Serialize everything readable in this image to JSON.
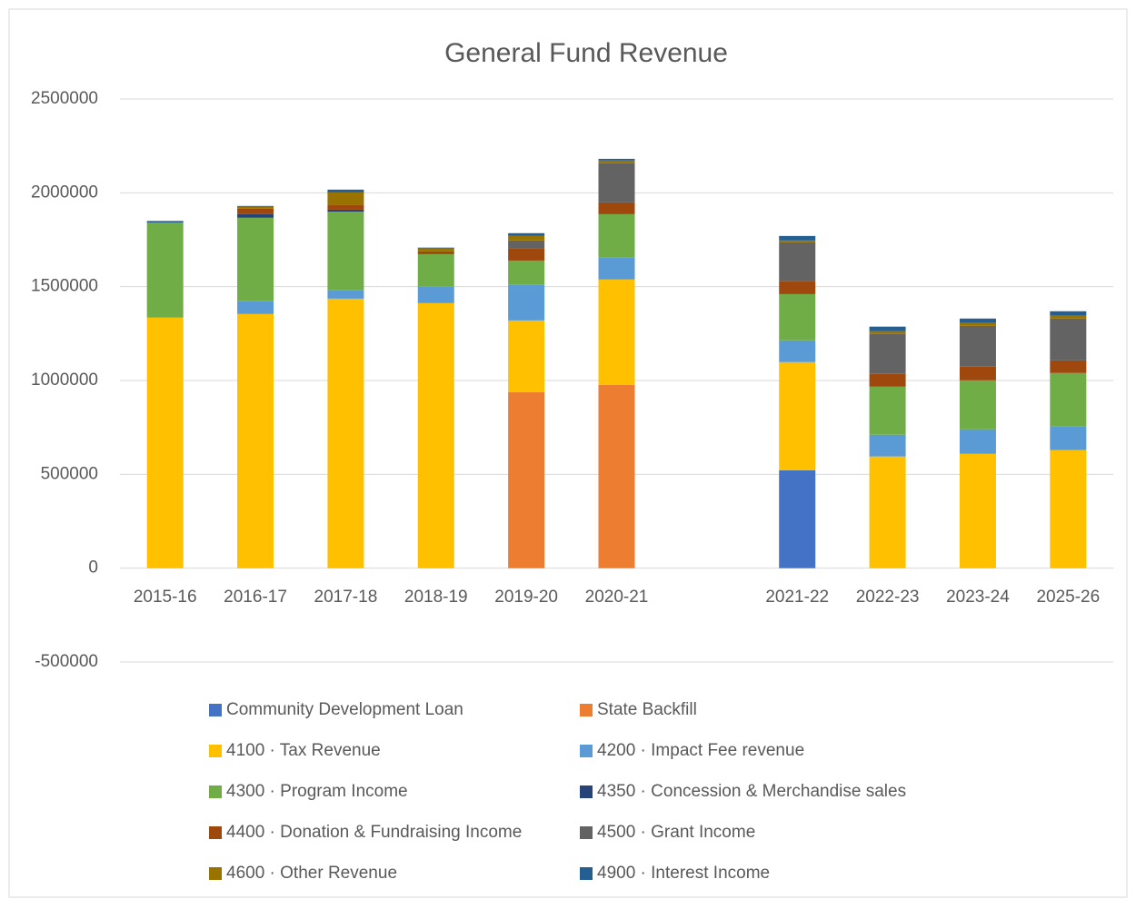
{
  "chart_data": {
    "type": "stacked_bar",
    "title": "General Fund Revenue",
    "categories": [
      "2015-16",
      "2016-17",
      "2017-18",
      "2018-19",
      "2019-20",
      "2020-21",
      null,
      "2021-22",
      "2022-23",
      "2023-24",
      "2025-26"
    ],
    "ylim": [
      -500000,
      2500000
    ],
    "yticks": [
      -500000,
      0,
      500000,
      1000000,
      1500000,
      2000000,
      2500000
    ],
    "grid": true,
    "legend": "bottom",
    "series": [
      {
        "name": "Community Development Loan",
        "color": "#4472c4",
        "values": [
          0,
          0,
          0,
          0,
          0,
          0,
          null,
          522000,
          0,
          0,
          0
        ]
      },
      {
        "name": "State Backfill",
        "color": "#ed7d31",
        "values": [
          0,
          0,
          0,
          0,
          938000,
          977000,
          null,
          0,
          0,
          0,
          0
        ]
      },
      {
        "name": "4100 · Tax Revenue",
        "color": "#ffc000",
        "values": [
          1335000,
          1354000,
          1436000,
          1412000,
          382000,
          561000,
          null,
          576000,
          595000,
          609000,
          629000
        ]
      },
      {
        "name": "4200 · Impact Fee revenue",
        "color": "#5b9bd5",
        "values": [
          0,
          68000,
          44000,
          87000,
          189000,
          116000,
          null,
          116000,
          116000,
          131000,
          125000
        ]
      },
      {
        "name": "4300 · Program Income",
        "color": "#70ad47",
        "values": [
          507000,
          445000,
          420000,
          174000,
          130000,
          232000,
          null,
          246000,
          256000,
          261000,
          286000
        ]
      },
      {
        "name": "4350 · Concession & Merchandise sales",
        "color": "#264478",
        "values": [
          0,
          19000,
          10000,
          0,
          0,
          0,
          null,
          0,
          0,
          0,
          0
        ]
      },
      {
        "name": "4400 · Donation & Fundraising Income",
        "color": "#9e480e",
        "values": [
          0,
          29000,
          24000,
          15000,
          63000,
          63000,
          null,
          68000,
          68000,
          73000,
          67000
        ]
      },
      {
        "name": "4500 · Grant Income",
        "color": "#636363",
        "values": [
          0,
          0,
          0,
          0,
          44000,
          208000,
          null,
          208000,
          213000,
          217000,
          223000
        ]
      },
      {
        "name": "4600 · Other Revenue",
        "color": "#997300",
        "values": [
          0,
          10000,
          68000,
          15000,
          24000,
          15000,
          null,
          10000,
          15000,
          15000,
          15000
        ]
      },
      {
        "name": "4900 · Interest Income",
        "color": "#255e91",
        "values": [
          8000,
          5000,
          15000,
          5000,
          15000,
          9000,
          null,
          24000,
          24000,
          24000,
          24000
        ]
      }
    ]
  }
}
